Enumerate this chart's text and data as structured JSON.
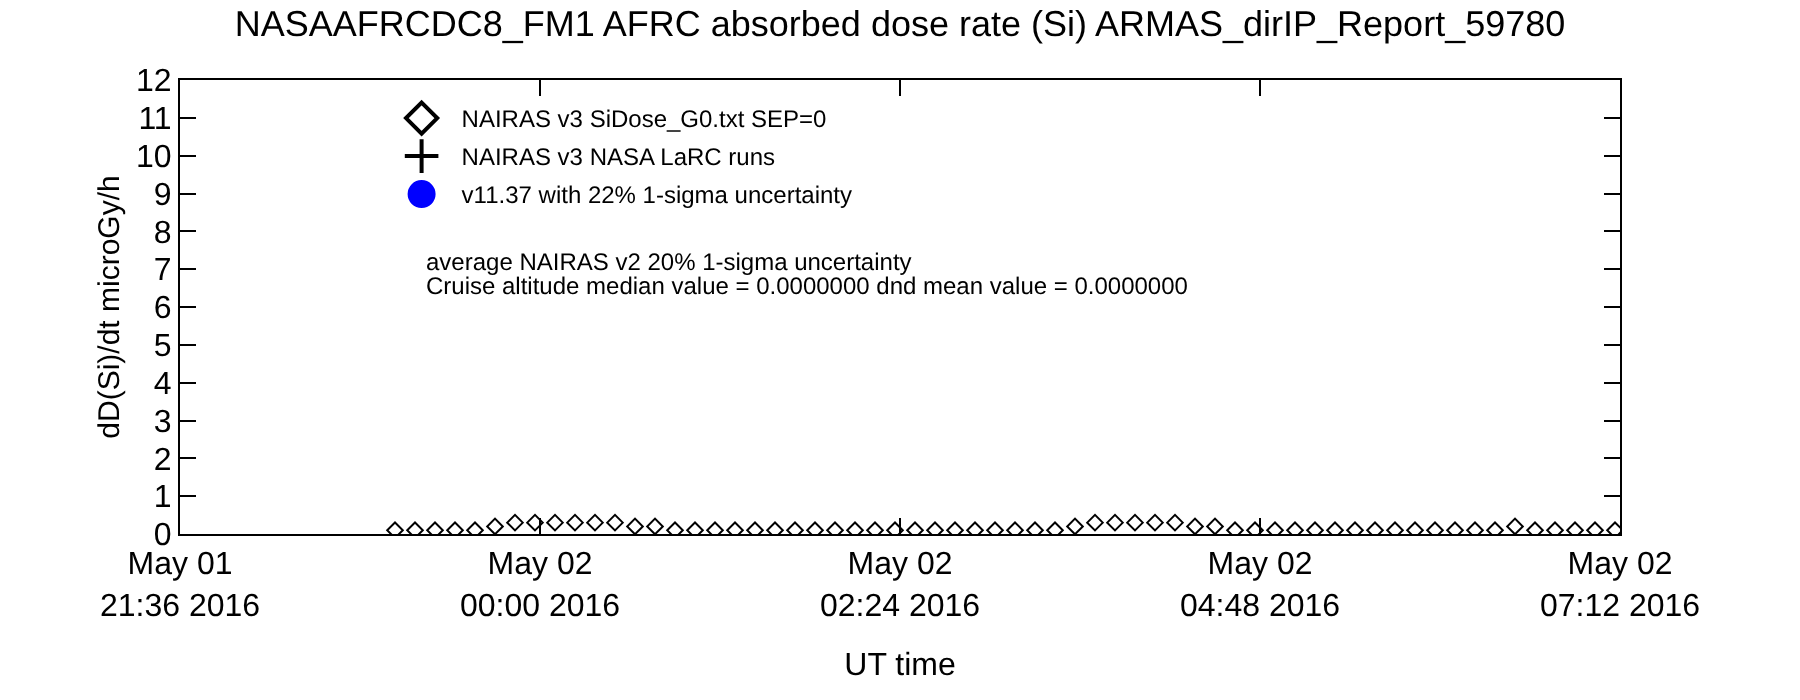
{
  "chart_data": {
    "type": "scatter",
    "title": "NASAAFRCDC8_FM1 AFRC absorbed dose rate (Si) ARMAS_dirIP_Report_59780",
    "xlabel": "UT time",
    "ylabel": "dD(Si)/dt microGy/h",
    "x": [
      "2016-05-01T23:02",
      "2016-05-01T23:10",
      "2016-05-01T23:18",
      "2016-05-01T23:26",
      "2016-05-01T23:34",
      "2016-05-01T23:42",
      "2016-05-01T23:50",
      "2016-05-01T23:58",
      "2016-05-02T00:06",
      "2016-05-02T00:14",
      "2016-05-02T00:22",
      "2016-05-02T00:30",
      "2016-05-02T00:38",
      "2016-05-02T00:46",
      "2016-05-02T00:54",
      "2016-05-02T01:02",
      "2016-05-02T01:10",
      "2016-05-02T01:18",
      "2016-05-02T01:26",
      "2016-05-02T01:34",
      "2016-05-02T01:42",
      "2016-05-02T01:50",
      "2016-05-02T01:58",
      "2016-05-02T02:06",
      "2016-05-02T02:14",
      "2016-05-02T02:22",
      "2016-05-02T02:30",
      "2016-05-02T02:38",
      "2016-05-02T02:46",
      "2016-05-02T02:54",
      "2016-05-02T03:02",
      "2016-05-02T03:10",
      "2016-05-02T03:18",
      "2016-05-02T03:26",
      "2016-05-02T03:34",
      "2016-05-02T03:42",
      "2016-05-02T03:50",
      "2016-05-02T03:58",
      "2016-05-02T04:06",
      "2016-05-02T04:14",
      "2016-05-02T04:22",
      "2016-05-02T04:30",
      "2016-05-02T04:38",
      "2016-05-02T04:46",
      "2016-05-02T04:54",
      "2016-05-02T05:02",
      "2016-05-02T05:10",
      "2016-05-02T05:18",
      "2016-05-02T05:26",
      "2016-05-02T05:34",
      "2016-05-02T05:42",
      "2016-05-02T05:50",
      "2016-05-02T05:58",
      "2016-05-02T06:06",
      "2016-05-02T06:14",
      "2016-05-02T06:22",
      "2016-05-02T06:30",
      "2016-05-02T06:38",
      "2016-05-02T06:46",
      "2016-05-02T06:54",
      "2016-05-02T07:02",
      "2016-05-02T07:10"
    ],
    "series": [
      {
        "name": "NAIRAS v3 SiDose_G0.txt SEP=0",
        "color": "#000000",
        "marker": "diamond",
        "values": [
          0.1,
          0.1,
          0.1,
          0.1,
          0.1,
          0.2,
          0.3,
          0.3,
          0.3,
          0.3,
          0.3,
          0.3,
          0.2,
          0.2,
          0.1,
          0.1,
          0.1,
          0.1,
          0.1,
          0.1,
          0.1,
          0.1,
          0.1,
          0.1,
          0.1,
          0.1,
          0.1,
          0.1,
          0.1,
          0.1,
          0.1,
          0.1,
          0.1,
          0.1,
          0.2,
          0.3,
          0.3,
          0.3,
          0.3,
          0.3,
          0.2,
          0.2,
          0.1,
          0.1,
          0.1,
          0.1,
          0.1,
          0.1,
          0.1,
          0.1,
          0.1,
          0.1,
          0.1,
          0.1,
          0.1,
          0.1,
          0.2,
          0.1,
          0.1,
          0.1,
          0.1,
          0.1
        ]
      },
      {
        "name": "NAIRAS v3 NASA LaRC runs",
        "color": "#000000",
        "marker": "cross",
        "values": [
          null,
          null,
          null,
          null,
          null,
          null,
          null,
          null,
          null,
          null,
          null,
          null,
          null,
          null,
          null,
          null,
          null,
          null,
          null,
          null,
          null,
          null,
          null,
          null,
          null,
          null,
          null,
          null,
          null,
          null,
          null,
          null,
          null,
          null,
          null,
          null,
          null,
          null,
          null,
          null,
          null,
          null,
          null,
          null,
          null,
          null,
          null,
          null,
          null,
          null,
          null,
          null,
          null,
          null,
          null,
          null,
          null,
          null,
          null,
          null,
          null,
          null
        ]
      },
      {
        "name": "v11.37 with 22% 1-sigma uncertainty",
        "color": "#0000ff",
        "marker": "circle",
        "values": [
          null,
          null,
          null,
          null,
          null,
          null,
          null,
          null,
          null,
          null,
          null,
          null,
          null,
          null,
          null,
          null,
          null,
          null,
          null,
          null,
          null,
          null,
          null,
          null,
          null,
          null,
          null,
          null,
          null,
          null,
          null,
          null,
          null,
          null,
          null,
          null,
          null,
          null,
          null,
          null,
          null,
          null,
          null,
          null,
          null,
          null,
          null,
          null,
          null,
          null,
          null,
          null,
          null,
          null,
          null,
          null,
          null,
          null,
          null,
          null,
          null,
          null
        ]
      }
    ],
    "annotations": [
      "average NAIRAS v2 20% 1-sigma uncertainty",
      "Cruise altitude median value = 0.0000000 dnd mean value = 0.0000000"
    ],
    "xlim": [
      "2016-05-01T21:36",
      "2016-05-02T07:12"
    ],
    "xticks": [
      {
        "value": "2016-05-01T21:36",
        "label": "May 01\n21:36 2016"
      },
      {
        "value": "2016-05-02T00:00",
        "label": "May 02\n00:00 2016"
      },
      {
        "value": "2016-05-02T02:24",
        "label": "May 02\n02:24 2016"
      },
      {
        "value": "2016-05-02T04:48",
        "label": "May 02\n04:48 2016"
      },
      {
        "value": "2016-05-02T07:12",
        "label": "May 02\n07:12 2016"
      }
    ],
    "ylim": [
      0,
      12
    ],
    "yticks": [
      0,
      1,
      2,
      3,
      4,
      5,
      6,
      7,
      8,
      9,
      10,
      11,
      12
    ],
    "legend": "top left"
  }
}
